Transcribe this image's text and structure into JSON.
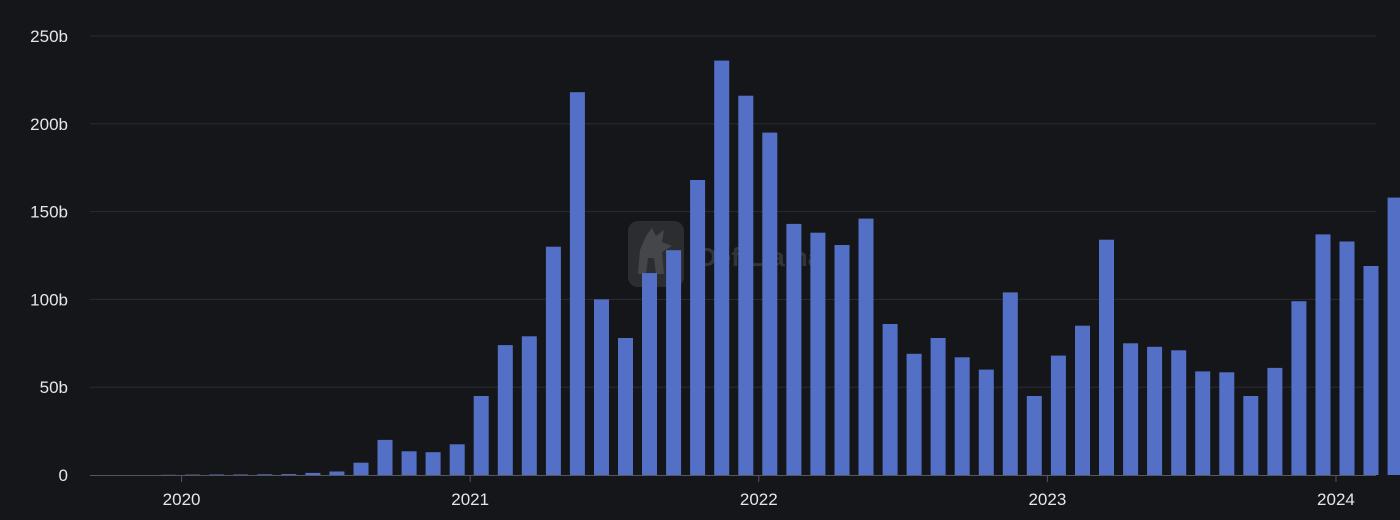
{
  "chart_data": {
    "type": "bar",
    "title": "",
    "xlabel": "",
    "ylabel": "",
    "ylim": [
      0,
      250
    ],
    "y_unit_suffix": "b",
    "yticks": [
      0,
      50,
      100,
      150,
      200,
      250
    ],
    "ytick_labels": [
      "0",
      "50b",
      "100b",
      "150b",
      "200b",
      "250b"
    ],
    "xtick_labels": [
      {
        "label": "2020",
        "date": "2020-01-01"
      },
      {
        "label": "2021",
        "date": "2021-01-01"
      },
      {
        "label": "2022",
        "date": "2022-01-01"
      },
      {
        "label": "2023",
        "date": "2023-01-01"
      },
      {
        "label": "2024",
        "date": "2024-01-01"
      }
    ],
    "grid": true,
    "bar_color": "#5470c6",
    "categories": [
      "2019-11",
      "2019-12",
      "2020-01",
      "2020-02",
      "2020-03",
      "2020-04",
      "2020-05",
      "2020-06",
      "2020-07",
      "2020-08",
      "2020-09",
      "2020-10",
      "2020-11",
      "2020-12",
      "2021-01",
      "2021-02",
      "2021-03",
      "2021-04",
      "2021-05",
      "2021-06",
      "2021-07",
      "2021-08",
      "2021-09",
      "2021-10",
      "2021-11",
      "2021-12",
      "2022-01",
      "2022-02",
      "2022-03",
      "2022-04",
      "2022-05",
      "2022-06",
      "2022-07",
      "2022-08",
      "2022-09",
      "2022-10",
      "2022-11",
      "2022-12",
      "2023-01",
      "2023-02",
      "2023-03",
      "2023-04",
      "2023-05",
      "2023-06",
      "2023-07",
      "2023-08",
      "2023-09",
      "2023-10",
      "2023-11",
      "2023-12",
      "2024-01",
      "2024-02",
      "2024-03"
    ],
    "values": [
      0,
      0.1,
      0.2,
      0.3,
      0.3,
      0.4,
      0.5,
      1.2,
      2,
      7,
      20,
      13.5,
      13,
      17.5,
      45,
      74,
      79,
      130,
      218,
      100,
      78,
      115,
      128,
      168,
      236,
      216,
      195,
      143,
      138,
      131,
      146,
      86,
      69,
      78,
      67,
      60,
      104,
      45,
      68,
      85,
      134,
      75,
      73,
      71,
      59,
      58.5,
      45,
      61,
      99,
      137,
      133,
      119,
      158
    ]
  },
  "watermark": {
    "text": "DefiLlama",
    "icon": "llama-logo-icon"
  }
}
